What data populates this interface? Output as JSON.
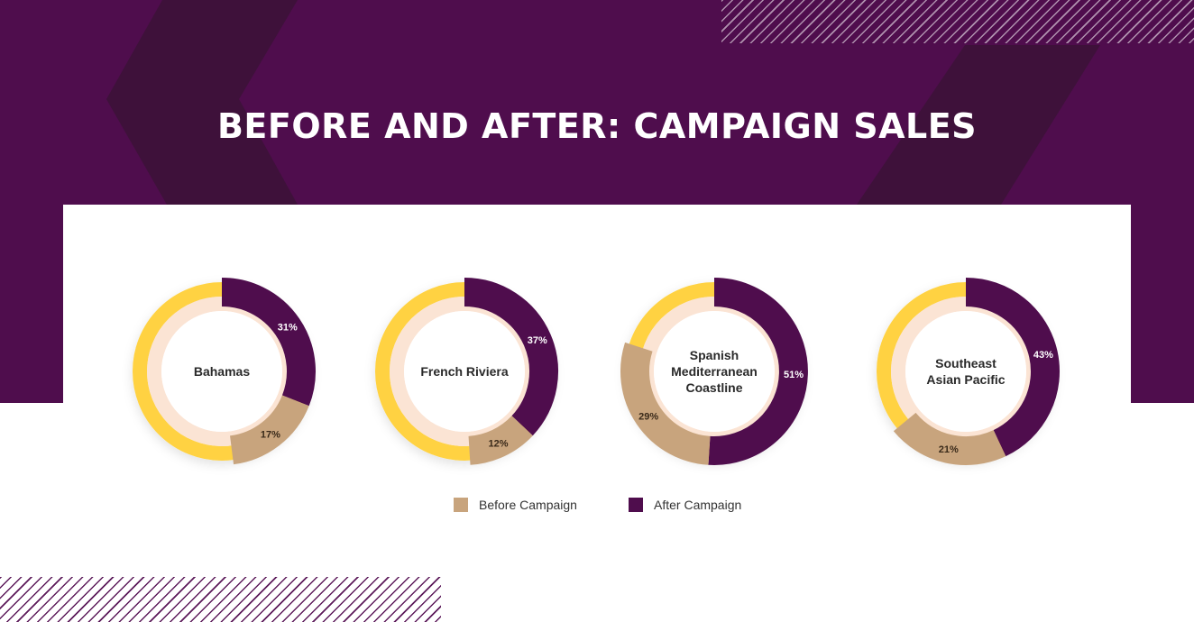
{
  "title": "BEFORE AND AFTER: CAMPAIGN SALES",
  "colors": {
    "background": "#4f0d4d",
    "before": "#c8a47d",
    "after": "#4f0d4d",
    "outer_ring": "#ffd242",
    "inner_ring": "#fbe4d4"
  },
  "legend": {
    "before_label": "Before Campaign",
    "after_label": "After Campaign"
  },
  "chart_data": {
    "type": "donut",
    "title": "BEFORE AND AFTER: CAMPAIGN SALES",
    "series": [
      {
        "name": "Before Campaign",
        "values": [
          17,
          12,
          29,
          21
        ]
      },
      {
        "name": "After Campaign",
        "values": [
          31,
          37,
          51,
          43
        ]
      }
    ],
    "categories": [
      "Bahamas",
      "French Riviera",
      "Spanish Mediterranean Coastline",
      "Southeast Asian Pacific"
    ],
    "charts": [
      {
        "label_lines": [
          "Bahamas"
        ],
        "after": 31,
        "before": 17,
        "after_label": "31%",
        "before_label": "17%"
      },
      {
        "label_lines": [
          "French Riviera"
        ],
        "after": 37,
        "before": 12,
        "after_label": "37%",
        "before_label": "12%"
      },
      {
        "label_lines": [
          "Spanish",
          "Mediterranean",
          "Coastline"
        ],
        "after": 51,
        "before": 29,
        "after_label": "51%",
        "before_label": "29%"
      },
      {
        "label_lines": [
          "Southeast",
          "Asian Pacific"
        ],
        "after": 43,
        "before": 21,
        "after_label": "43%",
        "before_label": "21%"
      }
    ],
    "unit": "%",
    "legend_position": "bottom"
  }
}
